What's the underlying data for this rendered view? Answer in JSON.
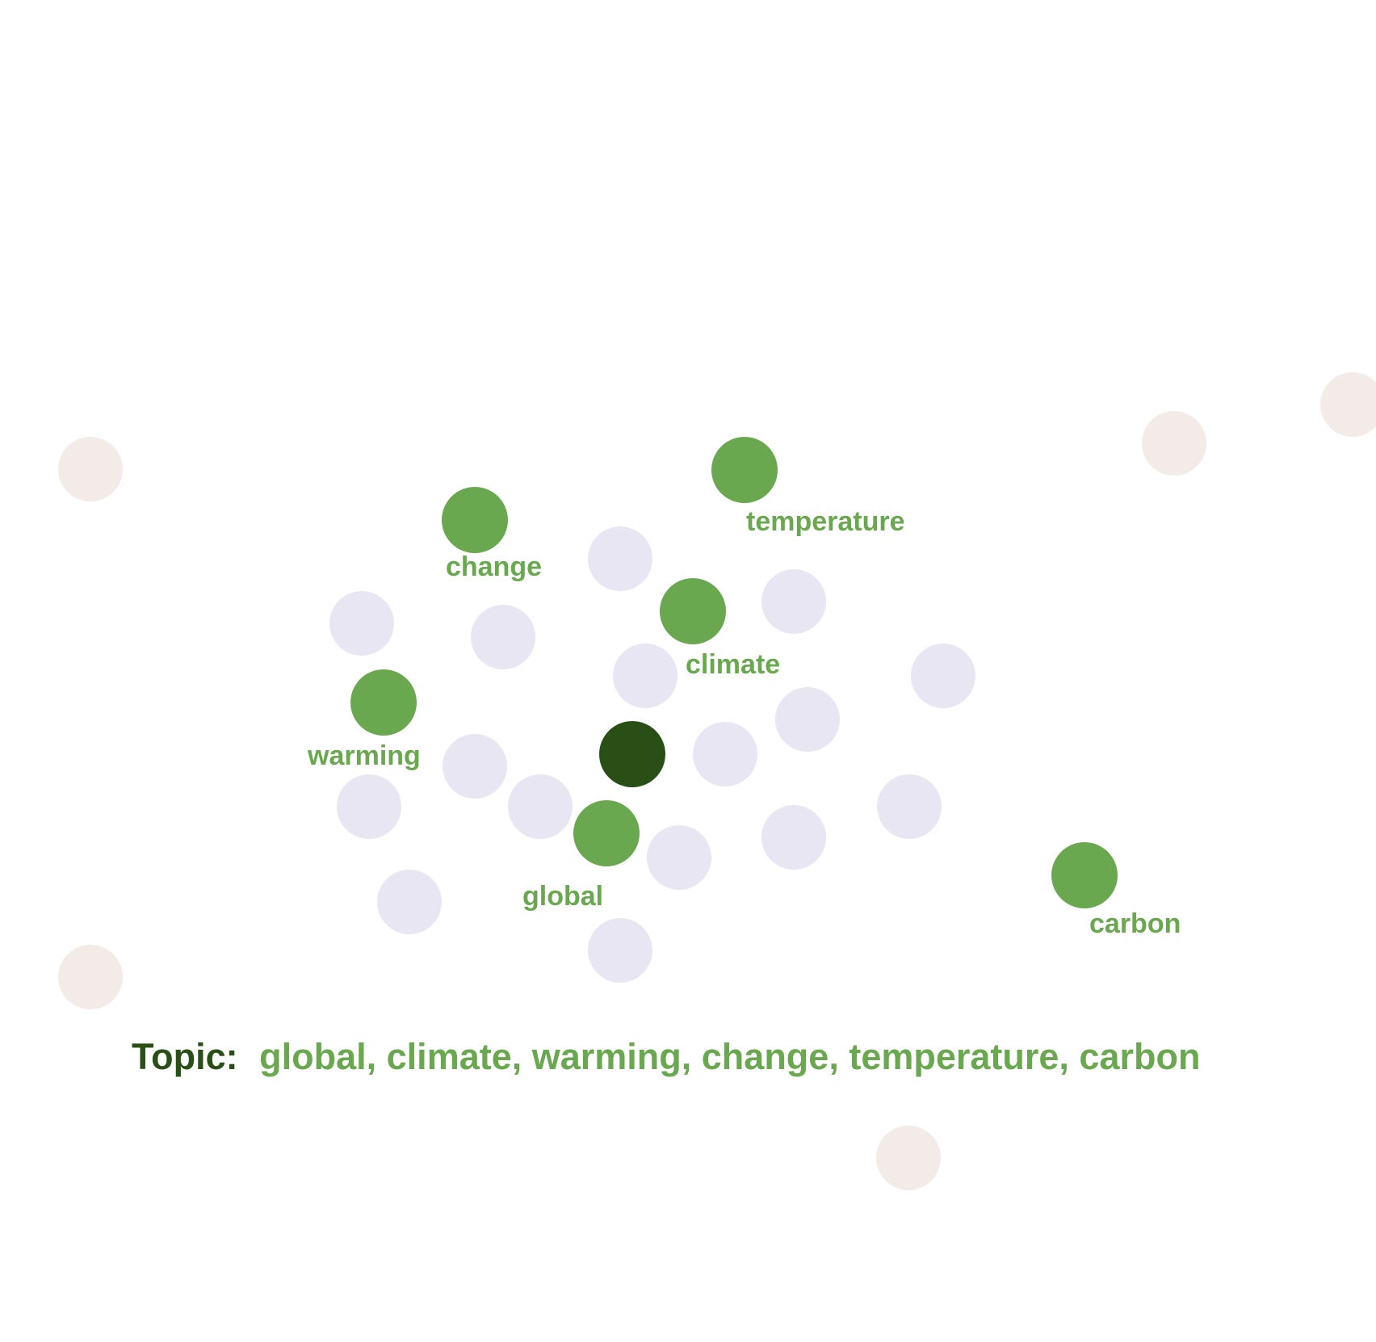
{
  "colors": {
    "focus": "#2a4f16",
    "topic_word": "#6aa84f",
    "neighbor": "#e8e6f2",
    "distant": "#f3ebe8",
    "topic_prefix": "#2a4f16"
  },
  "topic_line": {
    "prefix": "Topic:",
    "words": "global, climate, warming, change, temperature, carbon"
  },
  "topic_words": [
    {
      "label": "change"
    },
    {
      "label": "temperature"
    },
    {
      "label": "climate"
    },
    {
      "label": "warming"
    },
    {
      "label": "global"
    },
    {
      "label": "carbon"
    }
  ]
}
